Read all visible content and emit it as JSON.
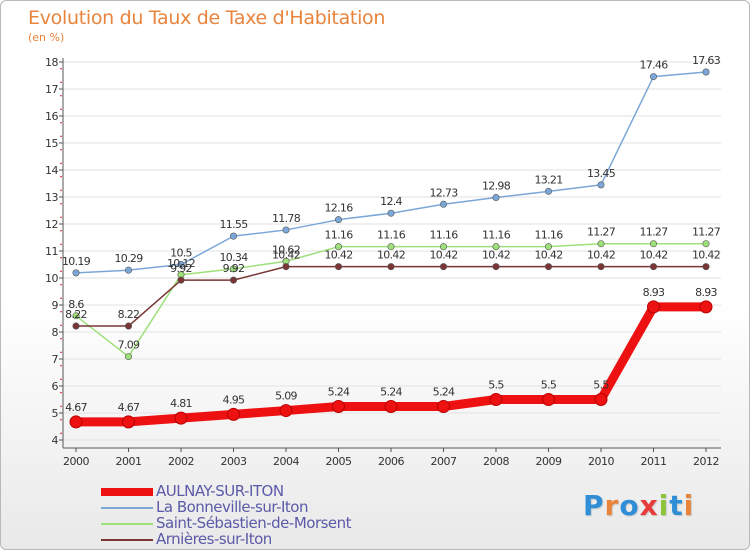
{
  "chart_title": "Evolution du Taux de Taxe d'Habitation",
  "chart_subtitle": "(en %)",
  "logo_text": "Proxiti",
  "logo_colors": [
    "#2f8ed6",
    "#e8843c",
    "#2f8ed6",
    "#e83c3c",
    "#8cc43c",
    "#2f8ed6",
    "#e8843c"
  ],
  "chart_data": {
    "type": "line",
    "title": "Evolution du Taux de Taxe d'Habitation",
    "subtitle": "(en %)",
    "xlabel": "",
    "ylabel": "",
    "x": [
      "2000",
      "2001",
      "2002",
      "2003",
      "2004",
      "2005",
      "2006",
      "2007",
      "2008",
      "2009",
      "2010",
      "2011",
      "2012"
    ],
    "ylim": [
      4,
      18
    ],
    "yticks": [
      4,
      5,
      6,
      7,
      8,
      9,
      10,
      11,
      12,
      13,
      14,
      15,
      16,
      17,
      18
    ],
    "grid": "horizontal",
    "legend_position": "bottom-left",
    "series": [
      {
        "name": "AULNAY-SUR-ITON",
        "color": "#ee1111",
        "thick": true,
        "values": [
          4.67,
          4.67,
          4.81,
          4.95,
          5.09,
          5.24,
          5.24,
          5.24,
          5.5,
          5.5,
          5.5,
          8.93,
          8.93
        ],
        "labels": [
          "4.67",
          "4.67",
          "4.81",
          "4.95",
          "5.09",
          "5.24",
          "5.24",
          "5.24",
          "5.5",
          "5.5",
          "5.5",
          "8.93",
          "8.93"
        ]
      },
      {
        "name": "La Bonneville-sur-Iton",
        "color": "#7ba7d8",
        "thick": false,
        "values": [
          10.19,
          10.29,
          10.5,
          11.55,
          11.78,
          12.16,
          12.4,
          12.73,
          12.98,
          13.21,
          13.45,
          17.46,
          17.63
        ],
        "labels": [
          "10.19",
          "10.29",
          "10.5",
          "11.55",
          "11.78",
          "12.16",
          "12.4",
          "12.73",
          "12.98",
          "13.21",
          "13.45",
          "17.46",
          "17.63"
        ]
      },
      {
        "name": "Saint-Sébastien-de-Morsent",
        "color": "#9ee07a",
        "thick": false,
        "values": [
          8.6,
          7.09,
          10.12,
          10.34,
          10.62,
          11.16,
          11.16,
          11.16,
          11.16,
          11.16,
          11.27,
          11.27,
          11.27
        ],
        "labels": [
          "8.6",
          "7.09",
          "10.12",
          "10.34",
          "10.62",
          "11.16",
          "11.16",
          "11.16",
          "11.16",
          "11.16",
          "11.27",
          "11.27",
          "11.27"
        ]
      },
      {
        "name": "Arnières-sur-Iton",
        "color": "#7a3535",
        "thick": false,
        "values": [
          8.22,
          8.22,
          9.92,
          9.92,
          10.42,
          10.42,
          10.42,
          10.42,
          10.42,
          10.42,
          10.42,
          10.42,
          10.42
        ],
        "labels": [
          "8.22",
          "8.22",
          "9.92",
          "9.92",
          "10.42",
          "10.42",
          "10.42",
          "10.42",
          "10.42",
          "10.42",
          "10.42",
          "10.42",
          "10.42"
        ]
      }
    ]
  }
}
